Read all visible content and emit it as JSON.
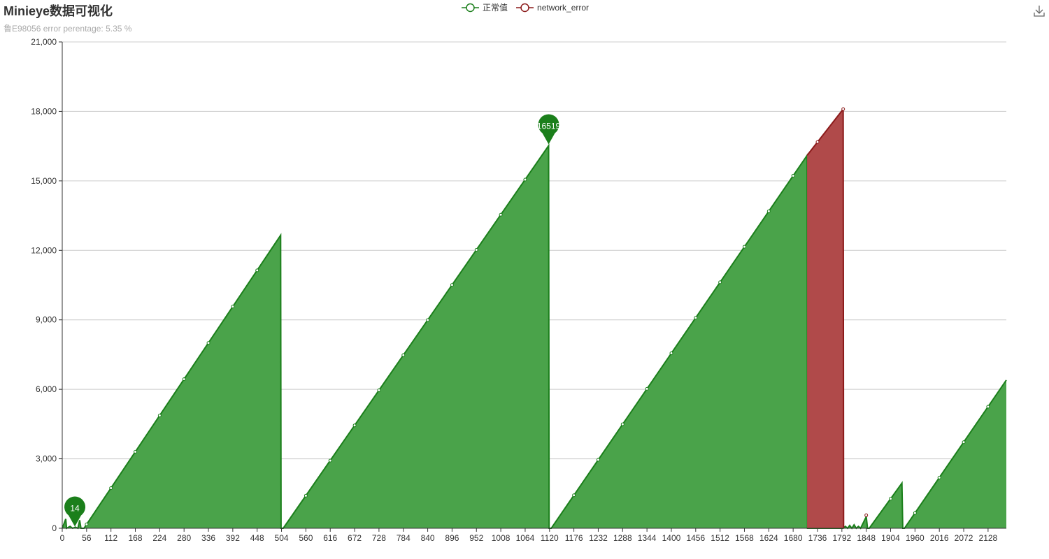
{
  "header": {
    "title": "Minieye数据可视化",
    "subtitle": "鲁E98056 error perentage: 5.35 %"
  },
  "toolbox": {
    "icon": "download-icon"
  },
  "colors": {
    "normal_line": "#1b7f1b",
    "normal_fill": "#4aa34a",
    "error_line": "#8b1a1a",
    "error_fill": "#b04a4a",
    "grid": "#cccccc",
    "axis": "#333333"
  },
  "chart_data": {
    "type": "area",
    "legend": [
      "正常值",
      "network_error"
    ],
    "legend_position": "top-center",
    "grid": true,
    "xlim": [
      0,
      2170
    ],
    "ylim": [
      0,
      21000
    ],
    "x_ticks": [
      "0",
      "56",
      "112",
      "168",
      "224",
      "280",
      "336",
      "392",
      "448",
      "504",
      "560",
      "616",
      "672",
      "728",
      "784",
      "840",
      "896",
      "952",
      "1008",
      "1064",
      "1120",
      "1176",
      "1232",
      "1288",
      "1344",
      "1400",
      "1456",
      "1512",
      "1568",
      "1624",
      "1680",
      "1736",
      "1792",
      "1848",
      "1904",
      "1960",
      "2016",
      "2072",
      "2128"
    ],
    "y_ticks": [
      "0",
      "3,000",
      "6,000",
      "9,000",
      "12,000",
      "15,000",
      "18,000",
      "21,000"
    ],
    "series": [
      {
        "name": "正常值",
        "points": [
          [
            0,
            0
          ],
          [
            8,
            400
          ],
          [
            10,
            0
          ],
          [
            18,
            80
          ],
          [
            24,
            0
          ],
          [
            30,
            50
          ],
          [
            36,
            0
          ],
          [
            40,
            350
          ],
          [
            43,
            0
          ],
          [
            50,
            0
          ],
          [
            502,
            12650
          ],
          [
            503,
            0
          ],
          [
            508,
            0
          ],
          [
            1118,
            16519
          ],
          [
            1119,
            0
          ],
          [
            1124,
            0
          ],
          [
            1712,
            16100
          ],
          [
            1713,
            0
          ],
          [
            1795,
            0
          ],
          [
            1800,
            80
          ],
          [
            1805,
            0
          ],
          [
            1810,
            120
          ],
          [
            1815,
            0
          ],
          [
            1820,
            150
          ],
          [
            1825,
            0
          ],
          [
            1830,
            80
          ],
          [
            1835,
            0
          ],
          [
            1848,
            500
          ],
          [
            1851,
            0
          ],
          [
            1855,
            0
          ],
          [
            1930,
            1950
          ],
          [
            1932,
            0
          ],
          [
            1936,
            0
          ],
          [
            2170,
            6400
          ]
        ]
      },
      {
        "name": "network_error",
        "points": [
          [
            1712,
            16100
          ],
          [
            1795,
            18100
          ],
          [
            1796,
            0
          ]
        ]
      }
    ],
    "annotations": [
      {
        "label": "14",
        "x": 29,
        "y": 14
      },
      {
        "label": "16519",
        "x": 1118,
        "y": 16519
      }
    ]
  }
}
